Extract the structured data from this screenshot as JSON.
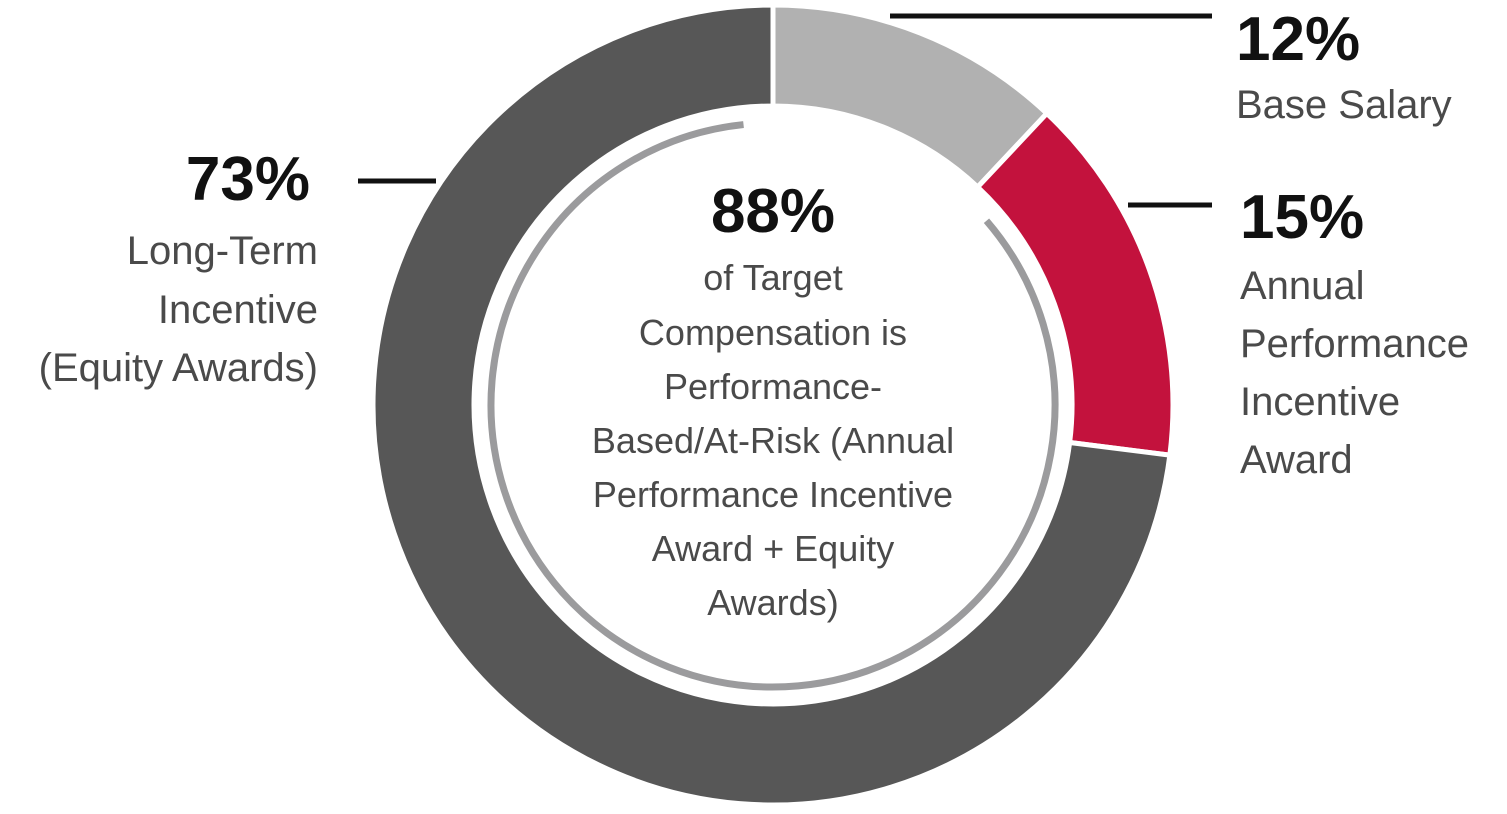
{
  "chart_data": {
    "type": "pie",
    "style": "donut",
    "slices": [
      {
        "label_lines": [
          "Base Salary"
        ],
        "value": 12,
        "value_text": "12%",
        "color": "#b1b1b1"
      },
      {
        "label_lines": [
          "Annual",
          "Performance",
          "Incentive",
          "Award"
        ],
        "value": 15,
        "value_text": "15%",
        "color": "#c3123d"
      },
      {
        "label_lines": [
          "Long-Term",
          "Incentive",
          "(Equity Awards)"
        ],
        "value": 73,
        "value_text": "73%",
        "color": "#575757"
      }
    ],
    "center": {
      "value_text": "88%",
      "lines": [
        "of Target",
        "Compensation is",
        "Performance-",
        "Based/At-Risk (Annual",
        "Performance Incentive",
        "Award + Equity",
        "Awards)"
      ]
    },
    "inner_arc": {
      "label": "Performance-Based/At-Risk",
      "value": 88,
      "color": "#9b9b9d"
    },
    "legend": "none"
  }
}
